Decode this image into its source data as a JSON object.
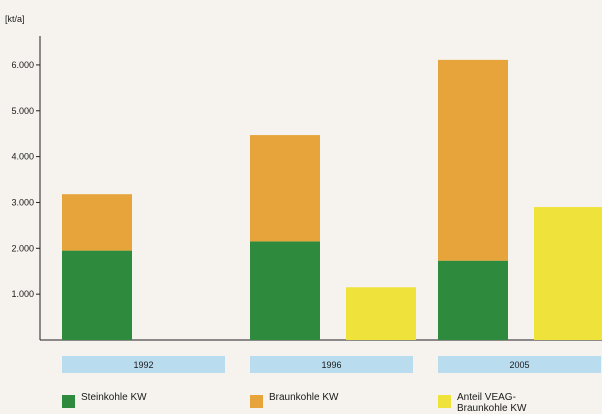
{
  "chart_data": {
    "type": "bar",
    "ylabel": "[kt/a]",
    "ylim": [
      0,
      6500
    ],
    "yticks": [
      1000,
      2000,
      3000,
      4000,
      5000,
      6000
    ],
    "ytick_labels": [
      "1.000",
      "2.000",
      "3.000",
      "4.000",
      "5.000",
      "6.000"
    ],
    "categories": [
      "1992",
      "1996",
      "2005"
    ],
    "stacked_series": [
      {
        "name": "Steinkohle KW",
        "color": "#2e8b3e",
        "values": [
          1950,
          2150,
          1730
        ]
      },
      {
        "name": "Braunkohle KW",
        "color": "#e6a43a",
        "values": [
          1230,
          2320,
          4380
        ]
      }
    ],
    "side_series": {
      "name": "Anteil VEAG-Braunkohle KW",
      "color": "#efe23a",
      "values": [
        null,
        1150,
        2900
      ]
    },
    "category_band_color": "#b9dcef"
  },
  "legend": {
    "items": [
      {
        "label": "Steinkohle KW",
        "color": "#2e8b3e"
      },
      {
        "label": "Braunkohle KW",
        "color": "#e6a43a"
      },
      {
        "label": "Anteil VEAG-\nBraunkohle KW",
        "color": "#efe23a"
      }
    ]
  }
}
